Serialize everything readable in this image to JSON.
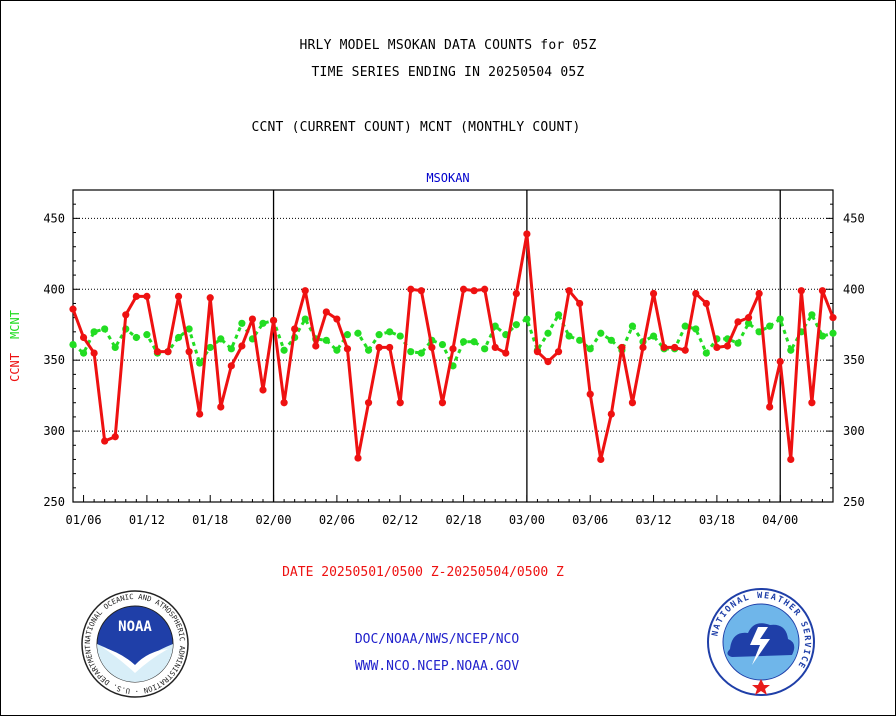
{
  "header": {
    "line1": "HRLY MODEL MSOKAN DATA COUNTS for 05Z",
    "line2": "TIME SERIES ENDING IN 20250504 05Z",
    "line3": "CCNT (CURRENT COUNT) MCNT (MONTHLY COUNT)"
  },
  "station": "MSOKAN",
  "date_range": "DATE 20250501/0500 Z-20250504/0500 Z",
  "footer": {
    "org": "DOC/NOAA/NWS/NCEP/NCO",
    "url": "WWW.NCO.NCEP.NOAA.GOV"
  },
  "logos": {
    "noaa_text": "NOAA",
    "noaa_ring": "NATIONAL OCEANIC AND ATMOSPHERIC ADMINISTRATION · U.S. DEPARTMENT OF COMMERCE ·",
    "nws_ring": "NATIONAL WEATHER SERVICE"
  },
  "colors": {
    "ccnt": "#ee1111",
    "mcnt": "#22dd22",
    "axis": "#000000",
    "title_blue": "#0000cc"
  },
  "chart_data": {
    "type": "line",
    "title": "MSOKAN",
    "ylabel_left": [
      "CCNT",
      "MCNT"
    ],
    "ylim": [
      250,
      470
    ],
    "yticks": [
      250,
      300,
      350,
      400,
      450
    ],
    "x_ticks": [
      "01/06",
      "01/12",
      "01/18",
      "02/00",
      "02/06",
      "02/12",
      "02/18",
      "03/00",
      "03/06",
      "03/12",
      "03/18",
      "04/00"
    ],
    "x_range_hours": [
      5,
      77
    ],
    "grid": "horizontal dotted",
    "series": [
      {
        "name": "CCNT",
        "x": [
          5,
          6,
          7,
          8,
          9,
          10,
          11,
          12,
          13,
          14,
          15,
          16,
          17,
          18,
          19,
          20,
          21,
          22,
          23,
          24,
          25,
          26,
          27,
          28,
          29,
          30,
          31,
          32,
          33,
          34,
          35,
          36,
          37,
          38,
          39,
          40,
          41,
          42,
          43,
          44,
          45,
          46,
          47,
          48,
          49,
          50,
          51,
          52,
          53,
          54,
          55,
          56,
          57,
          58,
          59,
          60,
          61,
          62,
          63,
          64,
          65,
          66,
          67,
          68,
          69,
          70,
          71,
          72,
          73,
          74,
          75,
          76,
          77
        ],
        "values": [
          386,
          366,
          355,
          293,
          296,
          382,
          395,
          395,
          356,
          356,
          395,
          356,
          312,
          394,
          317,
          346,
          360,
          379,
          329,
          378,
          320,
          372,
          399,
          360,
          384,
          379,
          358,
          281,
          320,
          359,
          359,
          320,
          400,
          399,
          359,
          320,
          358,
          400,
          399,
          400,
          359,
          355,
          397,
          439,
          356,
          349,
          356,
          399,
          390,
          326,
          280,
          312,
          359,
          320,
          359,
          397,
          359,
          359,
          357,
          397,
          390,
          359,
          360,
          377,
          380,
          397,
          317,
          349,
          280,
          399,
          320,
          399,
          380
        ]
      },
      {
        "name": "MCNT",
        "x": [
          5,
          6,
          7,
          8,
          9,
          10,
          11,
          12,
          13,
          14,
          15,
          16,
          17,
          18,
          19,
          20,
          21,
          22,
          23,
          24,
          25,
          26,
          27,
          28,
          29,
          30,
          31,
          32,
          33,
          34,
          35,
          36,
          37,
          38,
          39,
          40,
          41,
          42,
          43,
          44,
          45,
          46,
          47,
          48,
          49,
          50,
          51,
          52,
          53,
          54,
          55,
          56,
          57,
          58,
          59,
          60,
          61,
          62,
          63,
          64,
          65,
          66,
          67,
          68,
          69,
          70,
          71,
          72,
          73,
          74,
          75,
          76,
          77
        ],
        "values": [
          361,
          355,
          370,
          372,
          359,
          372,
          366,
          368,
          355,
          356,
          366,
          372,
          348,
          359,
          365,
          358,
          376,
          365,
          376,
          378,
          357,
          366,
          379,
          365,
          364,
          357,
          368,
          369,
          357,
          368,
          370,
          367,
          356,
          355,
          364,
          361,
          346,
          363,
          363,
          358,
          374,
          368,
          375,
          379,
          357,
          369,
          382,
          367,
          364,
          358,
          369,
          364,
          357,
          374,
          363,
          367,
          358,
          358,
          374,
          372,
          355,
          365,
          365,
          362,
          376,
          370,
          374,
          379,
          357,
          370,
          382,
          367,
          369
        ]
      }
    ]
  }
}
